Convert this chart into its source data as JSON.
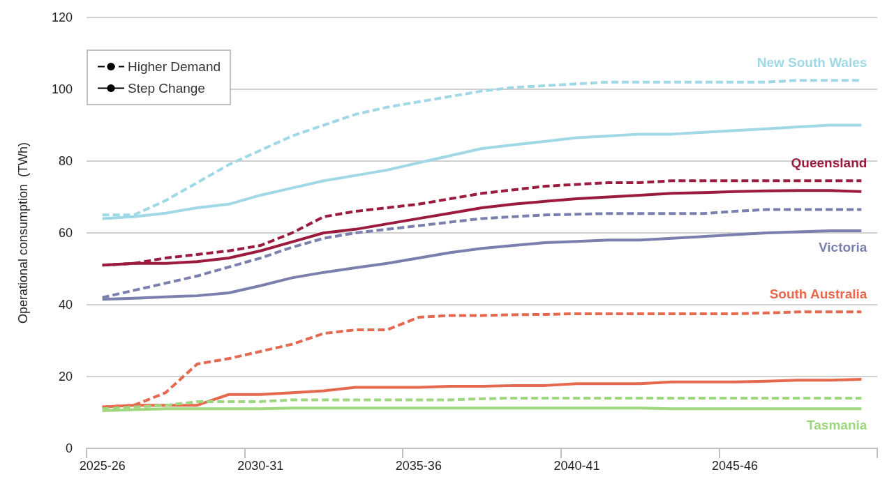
{
  "chart_data": {
    "type": "line",
    "ylabel": "Operational consumption  (TWh)",
    "categories": [
      "2025-26",
      null,
      null,
      null,
      null,
      "2030-31",
      null,
      null,
      null,
      null,
      "2035-36",
      null,
      null,
      null,
      null,
      "2040-41",
      null,
      null,
      null,
      null,
      "2045-46",
      null,
      null,
      null,
      null
    ],
    "ylim": [
      0,
      120
    ],
    "yticks": [
      0,
      20,
      40,
      60,
      80,
      100,
      120
    ],
    "grid": "y",
    "legend": "top left",
    "marker": "none",
    "series": [
      {
        "name": "Higher Demand",
        "color": "#000000",
        "line_style": "dashed",
        "values": [
          null,
          null,
          null,
          null,
          null,
          null,
          null,
          null,
          null,
          null,
          null,
          null,
          null,
          null,
          null,
          null,
          null,
          null,
          null,
          null,
          null,
          null,
          null,
          null,
          null
        ]
      },
      {
        "name": "Step Change",
        "color": "#000000",
        "line_style": "solid",
        "values": [
          null,
          null,
          null,
          null,
          null,
          null,
          null,
          null,
          null,
          null,
          null,
          null,
          null,
          null,
          null,
          null,
          null,
          null,
          null,
          null,
          null,
          null,
          null,
          null,
          null
        ]
      },
      {
        "name": "New South Wales",
        "color": "#a0d8e6",
        "line_style": "dashed",
        "values": [
          65,
          65,
          69,
          74,
          79,
          83,
          87,
          90,
          93,
          95,
          96.5,
          98,
          99.5,
          100.5,
          101,
          101.5,
          102,
          102,
          102,
          102,
          102,
          102,
          102.5,
          102.5,
          102.5
        ]
      },
      {
        "color": "#a0d8e6",
        "line_style": "solid",
        "values": [
          64,
          64.5,
          65.5,
          67,
          68,
          70.5,
          72.5,
          74.5,
          76,
          77.5,
          79.5,
          81.5,
          83.5,
          84.5,
          85.5,
          86.5,
          87,
          87.5,
          87.5,
          88,
          88.5,
          89,
          89.5,
          90,
          90
        ]
      },
      {
        "name": "Queensland",
        "color": "#9b1b3f",
        "line_style": "dashed",
        "values": [
          51,
          51.5,
          53,
          54,
          55,
          56.5,
          60,
          64.5,
          66,
          67,
          68,
          69.5,
          71,
          72,
          73,
          73.5,
          74,
          74,
          74.5,
          74.5,
          74.5,
          74.5,
          74.5,
          74.5,
          74.5
        ]
      },
      {
        "color": "#9b1b3f",
        "line_style": "solid",
        "values": [
          51,
          51.5,
          51.5,
          52,
          53,
          55,
          57.5,
          60,
          61,
          62.5,
          64,
          65.5,
          67,
          68,
          68.8,
          69.5,
          70,
          70.5,
          71,
          71.2,
          71.5,
          71.7,
          71.8,
          71.8,
          71.5
        ]
      },
      {
        "color": "#7a7fae",
        "line_style": "dashed",
        "values": [
          42,
          44,
          46,
          48,
          50.5,
          53,
          56,
          58.5,
          60,
          61,
          62,
          63,
          64,
          64.5,
          65,
          65.2,
          65.4,
          65.4,
          65.4,
          65.4,
          66,
          66.5,
          66.5,
          66.5,
          66.5
        ]
      },
      {
        "name": "Victoria",
        "color": "#7a7fae",
        "line_style": "solid",
        "values": [
          41.5,
          41.8,
          42.2,
          42.5,
          43.3,
          45.3,
          47.5,
          49,
          50.3,
          51.5,
          53,
          54.5,
          55.7,
          56.5,
          57.3,
          57.6,
          58,
          58,
          58.5,
          59,
          59.5,
          60,
          60.3,
          60.6,
          60.6
        ]
      },
      {
        "name": "South Australia",
        "color": "#e4694f",
        "line_style": "dashed",
        "values": [
          11.5,
          12,
          15.5,
          23.5,
          25,
          27,
          29,
          32,
          33,
          33,
          36.5,
          37,
          37,
          37.2,
          37.3,
          37.5,
          37.5,
          37.5,
          37.5,
          37.5,
          37.5,
          37.7,
          38,
          38,
          38
        ]
      },
      {
        "color": "#e4694f",
        "line_style": "solid",
        "values": [
          11.5,
          12,
          12,
          12,
          15,
          15,
          15.5,
          16,
          17,
          17,
          17,
          17.3,
          17.3,
          17.5,
          17.5,
          18,
          18,
          18,
          18.5,
          18.5,
          18.5,
          18.7,
          19,
          19,
          19.2
        ]
      },
      {
        "color": "#9fd77f",
        "line_style": "dashed",
        "values": [
          11,
          11.5,
          12,
          13,
          13,
          13,
          13.5,
          13.5,
          13.5,
          13.5,
          13.5,
          13.5,
          13.8,
          14,
          14,
          14,
          14,
          14,
          14,
          14,
          14,
          14,
          14,
          14,
          14
        ]
      },
      {
        "name": "Tasmania",
        "color": "#9fd77f",
        "line_style": "solid",
        "values": [
          10.5,
          10.8,
          11,
          11,
          11,
          11,
          11.2,
          11.2,
          11.2,
          11.2,
          11.2,
          11.2,
          11.2,
          11.2,
          11.2,
          11.2,
          11.2,
          11.2,
          11,
          11,
          11,
          11,
          11,
          11,
          11
        ]
      }
    ]
  }
}
